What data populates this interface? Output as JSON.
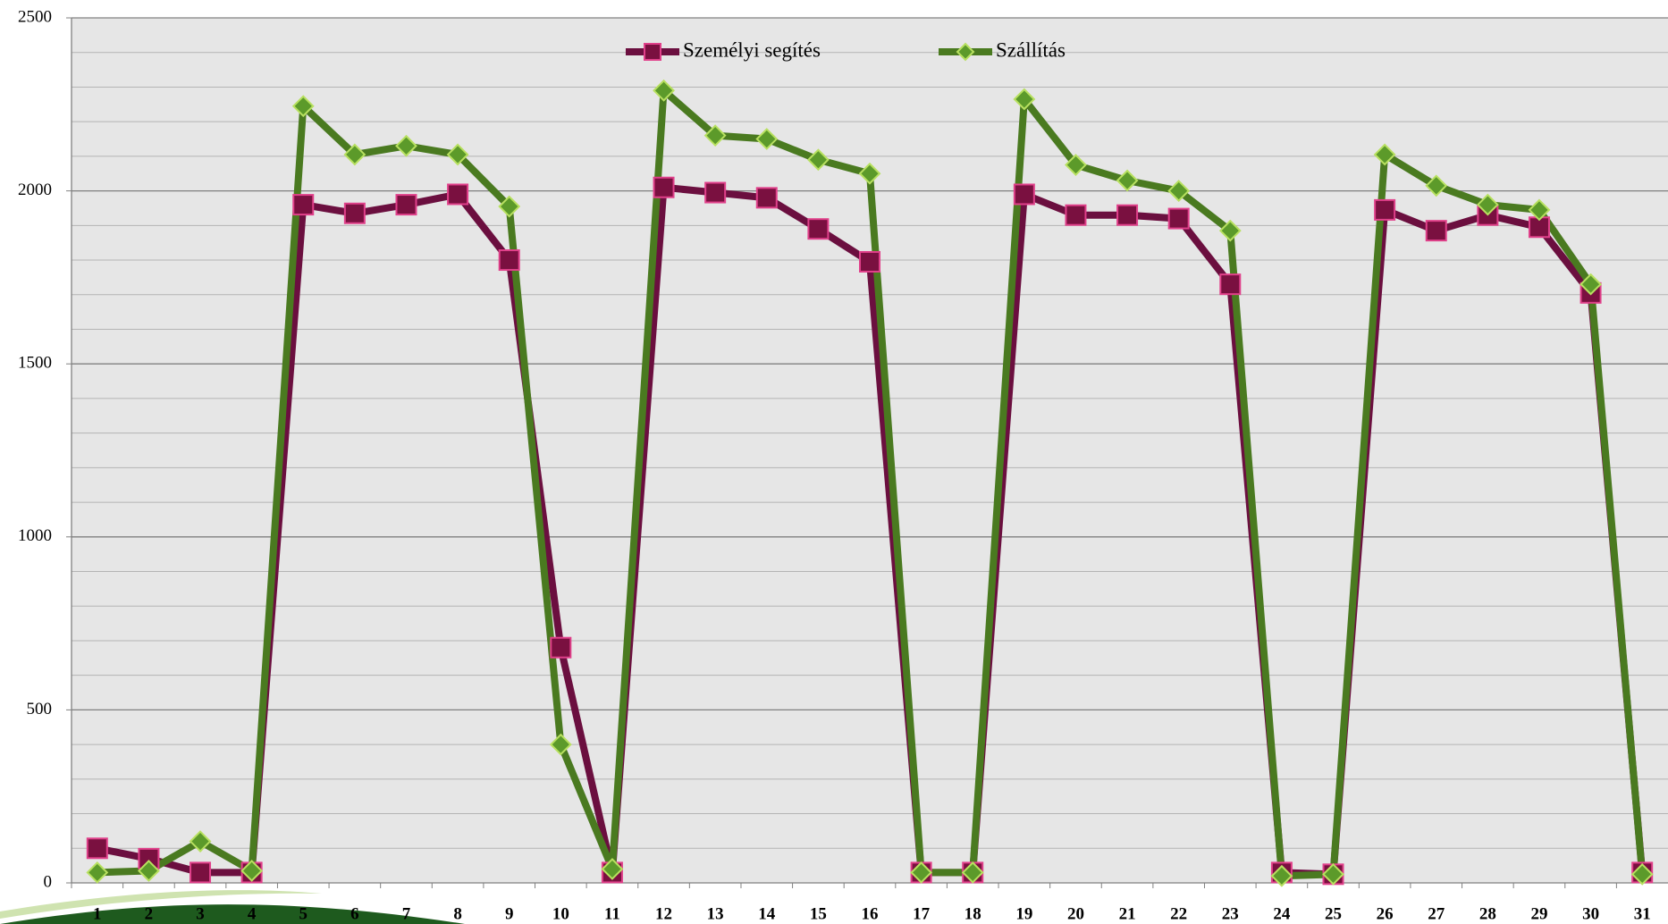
{
  "chart_data": {
    "type": "line",
    "categories": [
      "1",
      "2",
      "3",
      "4",
      "5",
      "6",
      "7",
      "8",
      "9",
      "10",
      "11",
      "12",
      "13",
      "14",
      "15",
      "16",
      "17",
      "18",
      "19",
      "20",
      "21",
      "22",
      "23",
      "24",
      "25",
      "26",
      "27",
      "28",
      "29",
      "30",
      "31"
    ],
    "series": [
      {
        "name": "Személyi segítés",
        "color": "#6b0f3f",
        "marker": "square",
        "marker_fill": "#7a1040",
        "marker_stroke": "#e0408a",
        "values": [
          100,
          70,
          30,
          30,
          1960,
          1935,
          1960,
          1990,
          1800,
          680,
          30,
          2010,
          1995,
          1980,
          1890,
          1795,
          30,
          30,
          1990,
          1930,
          1930,
          1920,
          1730,
          30,
          25,
          1945,
          1885,
          1930,
          1895,
          1705,
          30
        ]
      },
      {
        "name": "Szállítás",
        "color": "#4a7a20",
        "marker": "diamond",
        "marker_fill": "#5c9a2a",
        "marker_stroke": "#b8e060",
        "values": [
          30,
          35,
          120,
          35,
          2245,
          2105,
          2130,
          2105,
          1955,
          400,
          40,
          2290,
          2160,
          2150,
          2090,
          2050,
          30,
          30,
          2265,
          2075,
          2030,
          2000,
          1885,
          20,
          25,
          2105,
          2015,
          1960,
          1945,
          1730,
          25
        ]
      }
    ],
    "ylim": [
      0,
      2500
    ],
    "yticks": [
      0,
      500,
      1000,
      1500,
      2000,
      2500
    ],
    "minor_yticks": [
      100,
      200,
      300,
      400,
      600,
      700,
      800,
      900,
      1100,
      1200,
      1300,
      1400,
      1600,
      1700,
      1800,
      1900,
      2100,
      2200,
      2300,
      2400
    ],
    "grid": true,
    "legend": "top"
  }
}
